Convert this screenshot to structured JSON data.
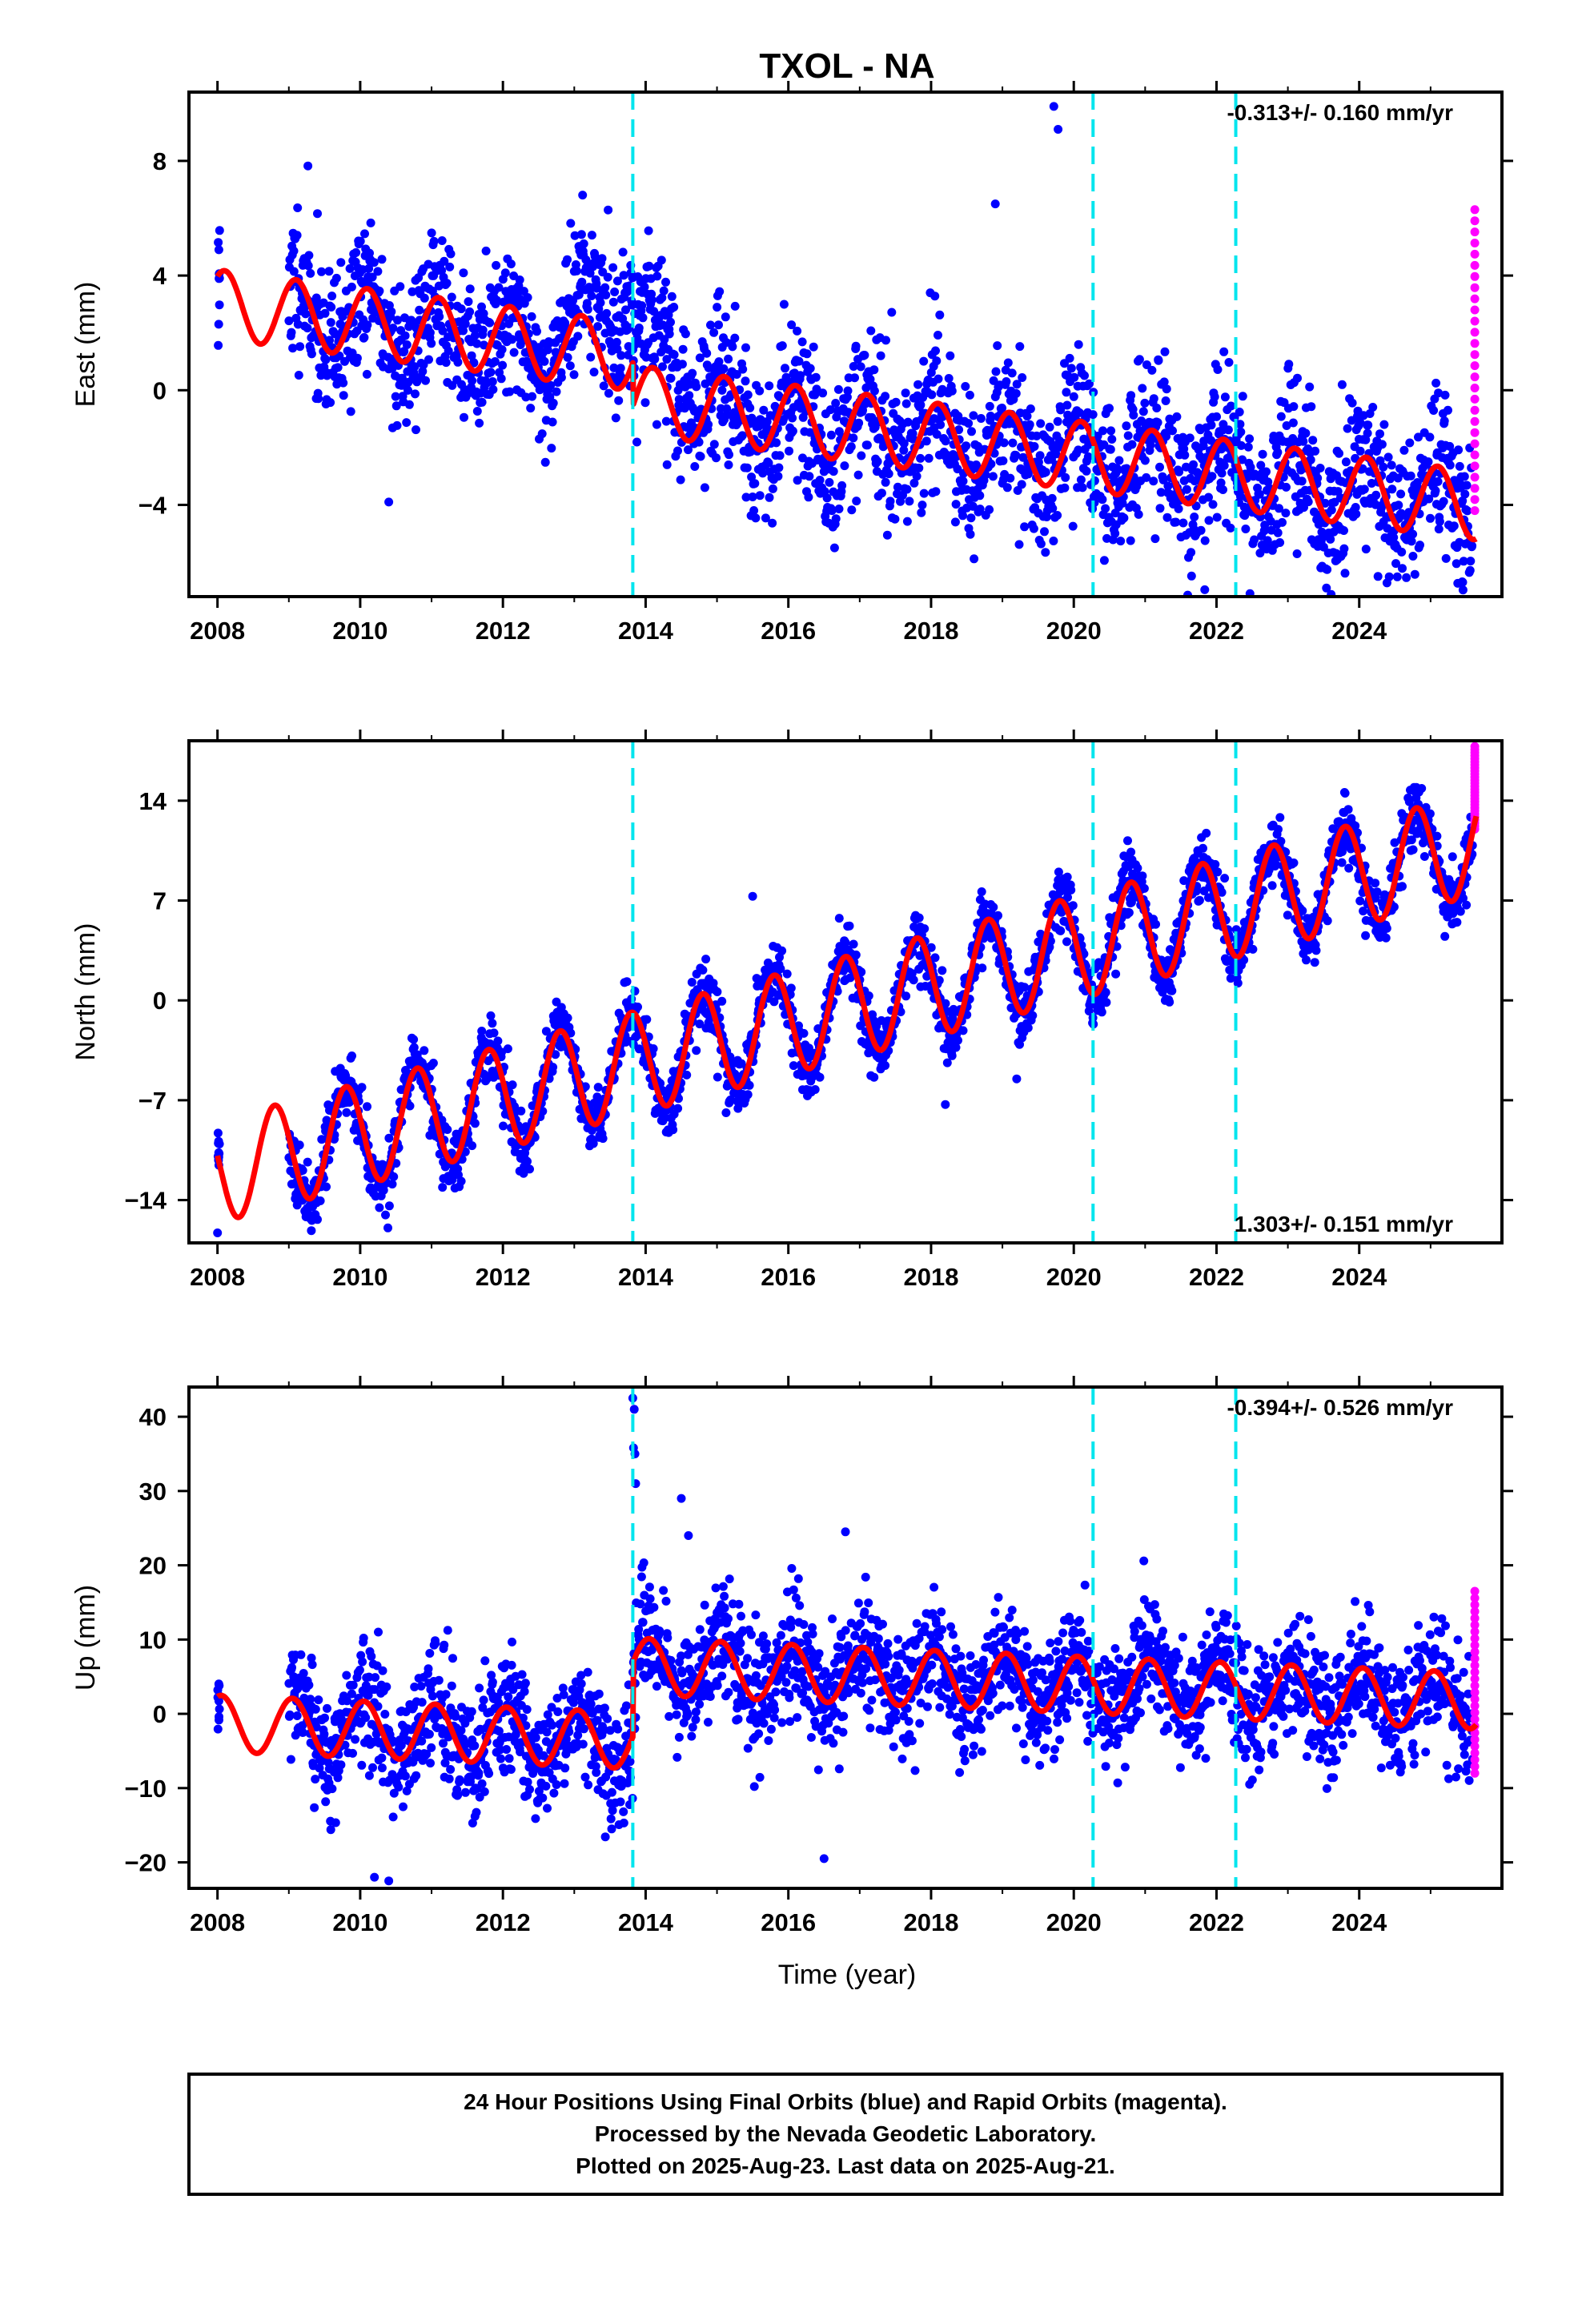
{
  "chart_data": {
    "type": "scatter",
    "title": "TXOL - NA",
    "xlabel": "Time (year)",
    "xlim": [
      2007.6,
      2026.0
    ],
    "x_ticks": [
      "2008",
      "2010",
      "2012",
      "2014",
      "2016",
      "2018",
      "2020",
      "2022",
      "2024"
    ],
    "x_tick_values": [
      2008,
      2010,
      2012,
      2014,
      2016,
      2018,
      2020,
      2022,
      2024
    ],
    "event_lines": [
      2013.82,
      2020.27,
      2022.27
    ],
    "colors": {
      "final": "#0000ff",
      "rapid": "#ff00ff",
      "model": "#ff0000",
      "event": "#00e5ee"
    },
    "panels": [
      {
        "name": "east",
        "ylabel": "East (mm)",
        "ylim": [
          -7.2,
          10.4
        ],
        "yticks": [
          -4,
          0,
          4,
          8
        ],
        "ytick_labels": [
          "−4",
          "0",
          "4",
          "8"
        ],
        "rate_text": "-0.313+/- 0.160 mm/yr",
        "rate_position": "top-right",
        "model": {
          "offset": 3.0,
          "slope": -0.313,
          "amplitude": 1.2,
          "phase": 0.85,
          "steps": [
            {
              "t": 2013.82,
              "dy": -1.5
            }
          ],
          "data_start": 2009.0
        },
        "scatter": {
          "seed": 11,
          "noise": 1.3,
          "density": 150,
          "bumps": [
            {
              "from": 2012.6,
              "to": 2015.0,
              "amount": 2.0
            }
          ]
        },
        "outliers": [
          {
            "x": 2019.72,
            "y": 9.9
          },
          {
            "x": 2019.78,
            "y": 9.1
          },
          {
            "x": 2018.9,
            "y": 6.5
          },
          {
            "x": 2025.45,
            "y": -6.7
          },
          {
            "x": 2010.4,
            "y": -3.9
          },
          {
            "x": 2014.3,
            "y": -2.6
          }
        ],
        "rapid_range": [
          -4.2,
          6.3
        ]
      },
      {
        "name": "north",
        "ylabel": "North (mm)",
        "ylim": [
          -17.0,
          18.2
        ],
        "yticks": [
          -14,
          -7,
          0,
          7,
          14
        ],
        "ytick_labels": [
          "−14",
          "−7",
          "0",
          "7",
          "14"
        ],
        "rate_text": "1.303+/- 0.151 mm/yr",
        "rate_position": "bottom-right",
        "model": {
          "offset": -12.0,
          "slope": 1.303,
          "amplitude": 3.6,
          "phase": 0.55,
          "steps": [],
          "data_start": 2009.0
        },
        "scatter": {
          "seed": 23,
          "noise": 1.1,
          "density": 150,
          "bumps": []
        },
        "outliers": [
          {
            "x": 2018.2,
            "y": -7.3
          },
          {
            "x": 2019.2,
            "y": -5.5
          },
          {
            "x": 2008.0,
            "y": -16.3
          },
          {
            "x": 2015.5,
            "y": 7.3
          }
        ],
        "rapid_range": [
          12.0,
          17.8
        ]
      },
      {
        "name": "up",
        "ylabel": "Up (mm)",
        "ylim": [
          -23.5,
          44.0
        ],
        "yticks": [
          -20,
          -10,
          0,
          10,
          20,
          30,
          40
        ],
        "ytick_labels": [
          "−20",
          "−10",
          "0",
          "10",
          "20",
          "30",
          "40"
        ],
        "rate_text": "-0.394+/- 0.526 mm/yr",
        "rate_position": "top-right",
        "model": {
          "offset": -1.3,
          "slope": -0.394,
          "amplitude": 3.8,
          "phase": 0.8,
          "steps": [
            {
              "t": 2013.82,
              "dy": 10.0
            }
          ],
          "data_start": 2009.0
        },
        "scatter": {
          "seed": 37,
          "noise": 4.0,
          "density": 150,
          "bumps": []
        },
        "outliers": [
          {
            "x": 2013.82,
            "y": 42.5
          },
          {
            "x": 2013.84,
            "y": 41.0
          },
          {
            "x": 2013.83,
            "y": 35.8
          },
          {
            "x": 2013.85,
            "y": 35.0
          },
          {
            "x": 2013.86,
            "y": 31.0
          },
          {
            "x": 2014.5,
            "y": 29.0
          },
          {
            "x": 2016.8,
            "y": 24.5
          },
          {
            "x": 2014.6,
            "y": 24.0
          },
          {
            "x": 2016.5,
            "y": -19.5
          },
          {
            "x": 2010.2,
            "y": -22.0
          },
          {
            "x": 2010.4,
            "y": -22.5
          }
        ],
        "rapid_range": [
          -8.0,
          16.5
        ]
      }
    ]
  },
  "footer": {
    "line1": "24 Hour Positions Using Final Orbits (blue) and Rapid Orbits (magenta).",
    "line2": "Processed by the Nevada Geodetic Laboratory.",
    "line3": "Plotted on 2025-Aug-23. Last data on 2025-Aug-21."
  }
}
